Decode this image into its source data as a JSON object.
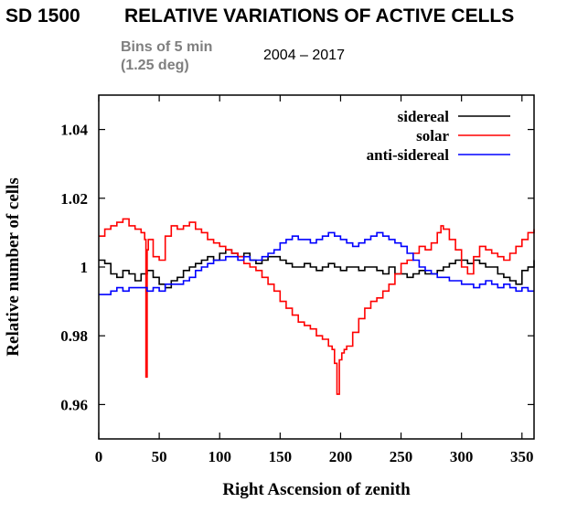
{
  "header": {
    "label": "SD 1500",
    "title": "RELATIVE VARIATIONS OF ACTIVE CELLS",
    "bins_line1": "Bins of 5 min",
    "bins_line2": "(1.25 deg)",
    "period": "2004 – 2017"
  },
  "chart_data": {
    "type": "line",
    "xlabel": "Right Ascension of zenith",
    "ylabel": "Relative number of cells",
    "xlim": [
      0,
      360
    ],
    "ylim": [
      0.95,
      1.05
    ],
    "xticks": [
      0,
      50,
      100,
      150,
      200,
      250,
      300,
      350
    ],
    "xtick_labels": [
      "0",
      "50",
      "100",
      "150",
      "200",
      "250",
      "300",
      "350"
    ],
    "yticks": [
      0.96,
      0.98,
      1.0,
      1.02,
      1.04
    ],
    "ytick_labels": [
      "0.96",
      "0.98",
      "1",
      "1.02",
      "1.04"
    ],
    "legend_position": "top-right",
    "grid": false,
    "step": true,
    "series": [
      {
        "name": "sidereal",
        "color": "#000000",
        "x": [
          0,
          5,
          10,
          15,
          20,
          25,
          30,
          35,
          40,
          45,
          50,
          55,
          60,
          65,
          70,
          75,
          80,
          85,
          90,
          95,
          100,
          105,
          110,
          115,
          120,
          125,
          130,
          135,
          140,
          145,
          150,
          155,
          160,
          165,
          170,
          175,
          180,
          185,
          190,
          195,
          200,
          205,
          210,
          215,
          220,
          225,
          230,
          235,
          240,
          245,
          250,
          255,
          260,
          265,
          270,
          275,
          280,
          285,
          290,
          295,
          300,
          305,
          310,
          315,
          320,
          325,
          330,
          335,
          340,
          345,
          350,
          355,
          360
        ],
        "y": [
          1.002,
          1.001,
          0.998,
          0.997,
          0.999,
          0.998,
          0.996,
          0.998,
          0.999,
          0.997,
          0.995,
          0.994,
          0.996,
          0.997,
          0.999,
          1.0,
          1.001,
          1.002,
          1.003,
          1.002,
          1.004,
          1.005,
          1.004,
          1.003,
          1.004,
          1.002,
          1.001,
          1.002,
          1.003,
          1.003,
          1.002,
          1.001,
          1.0,
          1.0,
          1.001,
          1.0,
          0.999,
          1.0,
          1.001,
          1.0,
          0.999,
          1.0,
          1.0,
          0.999,
          1.0,
          1.0,
          0.999,
          0.998,
          1.0,
          0.998,
          0.998,
          0.997,
          0.998,
          0.999,
          0.998,
          0.998,
          0.999,
          1.0,
          1.001,
          1.002,
          1.002,
          1.001,
          1.002,
          1.001,
          1.0,
          1.0,
          0.998,
          0.997,
          0.996,
          0.995,
          0.999,
          1.0,
          1.002
        ]
      },
      {
        "name": "solar",
        "color": "#ff0000",
        "x": [
          0,
          5,
          10,
          15,
          20,
          25,
          30,
          35,
          38,
          39,
          40,
          41,
          45,
          50,
          55,
          60,
          65,
          70,
          75,
          80,
          85,
          90,
          95,
          100,
          105,
          110,
          115,
          120,
          125,
          130,
          135,
          140,
          145,
          150,
          155,
          160,
          165,
          170,
          175,
          180,
          185,
          190,
          193,
          195,
          197,
          199,
          201,
          203,
          205,
          210,
          215,
          220,
          225,
          230,
          235,
          240,
          245,
          250,
          255,
          260,
          265,
          270,
          275,
          280,
          283,
          285,
          290,
          295,
          300,
          305,
          310,
          315,
          320,
          325,
          330,
          335,
          340,
          345,
          350,
          355,
          360
        ],
        "y": [
          1.009,
          1.011,
          1.012,
          1.013,
          1.014,
          1.012,
          1.011,
          1.01,
          1.008,
          0.968,
          1.005,
          1.008,
          1.003,
          1.002,
          1.009,
          1.012,
          1.011,
          1.012,
          1.013,
          1.011,
          1.01,
          1.008,
          1.007,
          1.006,
          1.005,
          1.004,
          1.003,
          1.001,
          1.0,
          0.999,
          0.997,
          0.995,
          0.993,
          0.99,
          0.988,
          0.986,
          0.984,
          0.983,
          0.982,
          0.98,
          0.979,
          0.977,
          0.976,
          0.972,
          0.963,
          0.973,
          0.975,
          0.976,
          0.977,
          0.981,
          0.985,
          0.988,
          0.99,
          0.991,
          0.993,
          0.995,
          0.998,
          1.001,
          1.002,
          1.004,
          1.006,
          1.005,
          1.007,
          1.01,
          1.012,
          1.011,
          1.008,
          1.005,
          1.0,
          0.998,
          1.003,
          1.006,
          1.005,
          1.004,
          1.003,
          1.002,
          1.004,
          1.006,
          1.008,
          1.01,
          1.011
        ]
      },
      {
        "name": "anti-sidereal",
        "color": "#0000ff",
        "x": [
          0,
          5,
          10,
          15,
          20,
          25,
          30,
          35,
          40,
          45,
          50,
          55,
          60,
          65,
          70,
          75,
          80,
          85,
          90,
          95,
          100,
          105,
          110,
          115,
          120,
          125,
          130,
          135,
          140,
          145,
          150,
          155,
          160,
          165,
          170,
          175,
          180,
          185,
          190,
          195,
          200,
          205,
          210,
          215,
          220,
          225,
          230,
          235,
          240,
          245,
          250,
          255,
          260,
          265,
          270,
          275,
          280,
          285,
          290,
          295,
          300,
          305,
          310,
          315,
          320,
          325,
          330,
          335,
          340,
          345,
          350,
          355,
          360
        ],
        "y": [
          0.992,
          0.992,
          0.993,
          0.994,
          0.993,
          0.994,
          0.994,
          0.994,
          0.993,
          0.994,
          0.993,
          0.995,
          0.995,
          0.995,
          0.996,
          0.997,
          0.999,
          1.0,
          1.001,
          1.002,
          1.002,
          1.003,
          1.003,
          1.002,
          1.003,
          1.002,
          1.002,
          1.003,
          1.004,
          1.005,
          1.007,
          1.008,
          1.009,
          1.008,
          1.008,
          1.007,
          1.008,
          1.009,
          1.01,
          1.009,
          1.008,
          1.007,
          1.006,
          1.007,
          1.008,
          1.009,
          1.01,
          1.009,
          1.008,
          1.007,
          1.006,
          1.004,
          1.002,
          1.0,
          0.999,
          0.998,
          0.997,
          0.997,
          0.996,
          0.996,
          0.995,
          0.995,
          0.994,
          0.995,
          0.996,
          0.995,
          0.994,
          0.995,
          0.994,
          0.993,
          0.994,
          0.993,
          0.993
        ]
      }
    ]
  }
}
